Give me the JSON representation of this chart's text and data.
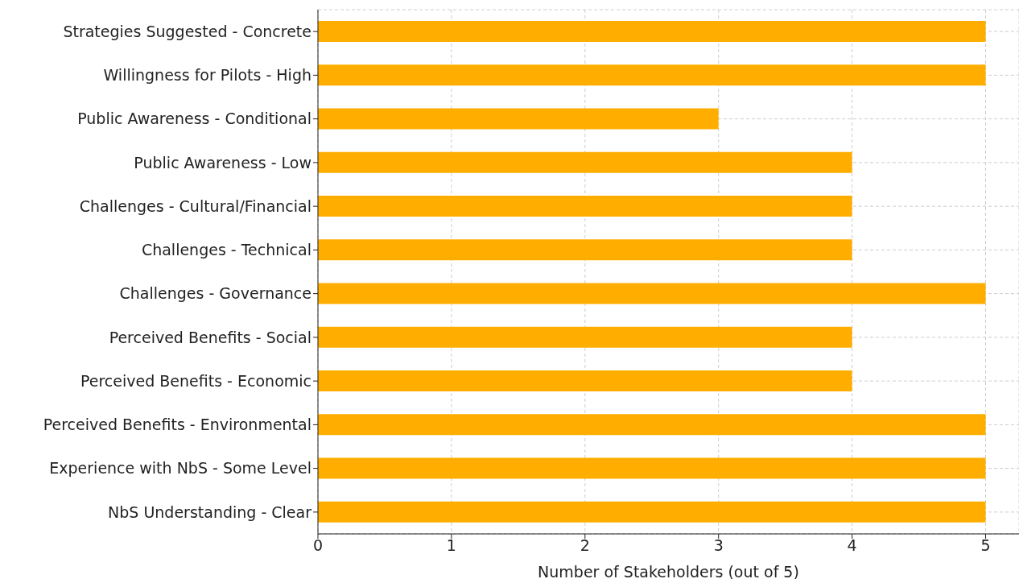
{
  "chart_data": {
    "type": "bar",
    "orientation": "horizontal",
    "xlabel": "Number of Stakeholders (out of 5)",
    "categories": [
      "Strategies Suggested - Concrete",
      "Willingness for Pilots - High",
      "Public Awareness - Conditional",
      "Public Awareness - Low",
      "Challenges - Cultural/Financial",
      "Challenges - Technical",
      "Challenges - Governance",
      "Perceived Benefits - Social",
      "Perceived Benefits - Economic",
      "Perceived Benefits - Environmental",
      "Experience with NbS - Some Level",
      "NbS Understanding - Clear"
    ],
    "values": [
      5,
      5,
      3,
      4,
      4,
      4,
      5,
      4,
      4,
      5,
      5,
      5
    ],
    "color": "#ffae00",
    "xlim": [
      0,
      5.25
    ],
    "xticks": [
      0,
      1,
      2,
      3,
      4,
      5
    ],
    "grid": true
  }
}
